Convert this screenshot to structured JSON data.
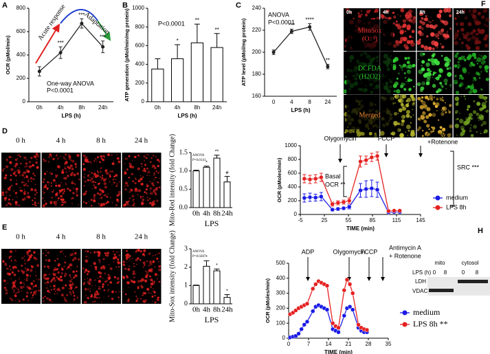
{
  "chart_data": [
    {
      "panel": "A",
      "type": "line",
      "x_label": "LPS (h)",
      "y_label": "OCR (pMol/min)",
      "categories": [
        "0h",
        "4h",
        "8h",
        "24h"
      ],
      "series": [
        {
          "values": [
            260,
            420,
            670,
            470
          ],
          "errors": [
            40,
            50,
            40,
            50
          ],
          "color": "#222222"
        }
      ],
      "significance": [
        null,
        "***",
        "***",
        "***"
      ],
      "ylim": [
        0,
        800
      ],
      "yticks": [
        0,
        200,
        400,
        600,
        800
      ],
      "annotations": [
        "Acute response",
        "Adaptation",
        "One-way ANOVA",
        "P<0.0001"
      ]
    },
    {
      "panel": "B",
      "type": "bar",
      "x_label": "LPS (h)",
      "y_label": "ATP generation (pMol/min/mg protein)",
      "categories": [
        "0h",
        "4h",
        "8h",
        "24h"
      ],
      "series": [
        {
          "values": [
            350,
            460,
            630,
            580
          ],
          "errors": [
            110,
            150,
            200,
            150
          ],
          "color": "#ffffff"
        }
      ],
      "significance": [
        null,
        "*",
        "**",
        "**"
      ],
      "ylim": [
        0,
        1000
      ],
      "yticks": [
        0,
        200,
        400,
        600,
        800,
        1000
      ],
      "annotations": [
        "P<0.0001"
      ]
    },
    {
      "panel": "C",
      "type": "line",
      "x_label": "LPS (h)",
      "y_label": "ATP level (pMol/mg protein)",
      "categories": [
        "0",
        "4",
        "8",
        "24"
      ],
      "series": [
        {
          "values": [
            200,
            219,
            223,
            187
          ],
          "errors": [
            2,
            2,
            3,
            2
          ],
          "color": "#222222"
        }
      ],
      "significance": [
        null,
        "***",
        "****",
        "**"
      ],
      "ylim": [
        160,
        240
      ],
      "yticks": [
        160,
        180,
        200,
        220,
        240
      ],
      "annotations": [
        "ANOVA",
        "P<0.0001"
      ]
    },
    {
      "type": "bar",
      "x_label": "LPS",
      "y_label": "Mito-Red intensity (fold Change)",
      "categories": [
        "0h",
        "4h",
        "8h",
        "24h"
      ],
      "series": [
        {
          "values": [
            1.0,
            1.1,
            1.35,
            0.7
          ],
          "errors": [
            0.02,
            0.03,
            0.08,
            0.15
          ],
          "color": "#ffffff"
        }
      ],
      "significance": [
        null,
        "*",
        "**",
        "#"
      ],
      "ylim": [
        0,
        1.5
      ],
      "yticks": [
        {
          "value": 0,
          "label": "0.0"
        },
        {
          "value": 0.5,
          "label": "0.5"
        },
        {
          "value": 1,
          "label": "1.0"
        },
        {
          "value": 1.5,
          "label": "1.5"
        }
      ],
      "annotations": [
        "ANOVA",
        "P=0.0141"
      ]
    },
    {
      "type": "bar",
      "x_label": "LPS",
      "y_label": "Mito-Sox intensity (fold Change)",
      "categories": [
        "0h",
        "4h",
        "8h",
        "24h"
      ],
      "series": [
        {
          "values": [
            1.0,
            2.05,
            1.8,
            0.35
          ],
          "errors": [
            0.02,
            0.3,
            0.1,
            0.15
          ],
          "color": "#ffffff"
        }
      ],
      "significance": [
        null,
        "*",
        "*",
        "*"
      ],
      "ylim": [
        0,
        3
      ],
      "yticks": [
        0,
        1,
        2,
        3
      ],
      "annotations": [
        "ANOVA",
        "P=0.0287"
      ]
    },
    {
      "panel": "G",
      "type": "line",
      "x_label": "TIME (min)",
      "y_label": "OCR (pMoles/min)",
      "x": [
        0,
        7,
        14,
        21,
        35,
        42,
        49,
        56,
        70,
        77,
        84,
        91,
        105,
        112,
        119
      ],
      "series": [
        {
          "name": "medium",
          "color": "#1a1ae6",
          "values": [
            240,
            250,
            245,
            260,
            70,
            80,
            90,
            110,
            350,
            370,
            380,
            360,
            30,
            35,
            35
          ],
          "errors": [
            60,
            60,
            50,
            60,
            20,
            20,
            20,
            30,
            100,
            120,
            120,
            110,
            10,
            10,
            10
          ]
        },
        {
          "name": "LPS 8h",
          "color": "#e62020",
          "values": [
            520,
            510,
            520,
            540,
            150,
            170,
            180,
            200,
            770,
            790,
            830,
            850,
            50,
            55,
            55
          ],
          "errors": [
            60,
            60,
            60,
            60,
            30,
            30,
            30,
            40,
            80,
            60,
            60,
            60,
            15,
            15,
            15
          ]
        }
      ],
      "xlim": [
        -5,
        145
      ],
      "xticks": [
        -5,
        25,
        55,
        85,
        115,
        145
      ],
      "ylim": [
        0,
        1000
      ],
      "yticks": [
        0,
        200,
        400,
        600,
        800,
        1000
      ],
      "annotations": [
        "Olygomycin",
        "FCCP",
        "Antimycin A",
        "+Rotenone",
        "Basal",
        "OCR **",
        "SRC ***"
      ]
    },
    {
      "panel": "H",
      "type": "line",
      "x_label": "TIME (min)",
      "y_label": "OCR (pMoles/min)",
      "x": [
        0.5,
        1.5,
        2.5,
        3.5,
        4.5,
        5.5,
        6.5,
        8.5,
        9.5,
        10.5,
        11.5,
        12.5,
        13.5,
        15.5,
        16.5,
        17.5,
        19.5,
        20.5,
        21.5,
        22.5,
        24.5,
        25.5,
        26.5,
        27.5
      ],
      "series": [
        {
          "name": "medium",
          "color": "#1a1ae6",
          "values": [
            5,
            10,
            15,
            30,
            60,
            90,
            110,
            180,
            210,
            220,
            210,
            200,
            190,
            60,
            50,
            40,
            150,
            200,
            210,
            190,
            70,
            50,
            40,
            40
          ]
        },
        {
          "name": "LPS 8h **",
          "color": "#e62020",
          "values": [
            160,
            170,
            185,
            200,
            210,
            220,
            230,
            330,
            360,
            380,
            370,
            360,
            350,
            100,
            80,
            70,
            320,
            390,
            360,
            300,
            90,
            70,
            60,
            55
          ]
        }
      ],
      "xlim": [
        0,
        35
      ],
      "xticks": [
        0,
        7,
        14,
        21,
        28,
        35
      ],
      "ylim": [
        0,
        500
      ],
      "yticks": [
        0,
        100,
        200,
        300,
        400,
        500
      ],
      "annotations": [
        "ADP",
        "Olygomycin",
        "FCCP",
        "Antimycin A",
        "+ Rotenone"
      ],
      "blot": {
        "groups": [
          "mito",
          "cytosol"
        ],
        "row_label": "LPS (h)",
        "lanes": [
          "0",
          "8",
          "0",
          "8"
        ],
        "bands": [
          "LDH",
          "VDAC"
        ]
      }
    }
  ],
  "figures": [
    {
      "panel": "F",
      "columns": [
        "0h",
        "4h",
        "8h",
        "24h"
      ],
      "rows": [
        "MitoSox",
        "(O⁻²)",
        "DCFDA",
        "(H2O2)",
        "Merged"
      ]
    },
    {
      "panel": "D",
      "columns": [
        "0 h",
        "4 h",
        "8 h",
        "24 h"
      ]
    },
    {
      "panel": "E",
      "columns": [
        "0 h",
        "4 h",
        "8 h",
        "24 h"
      ]
    }
  ]
}
